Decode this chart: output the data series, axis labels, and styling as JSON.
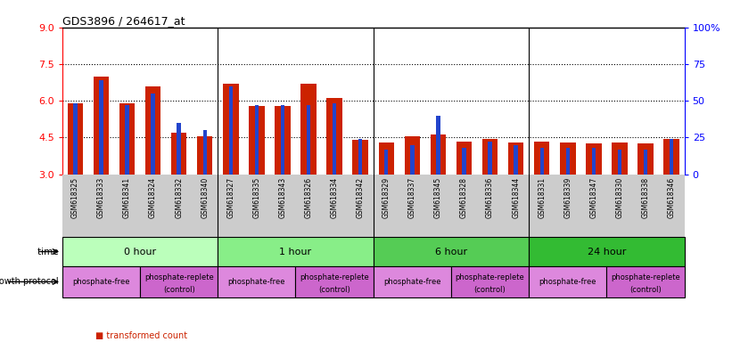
{
  "title": "GDS3896 / 264617_at",
  "samples": [
    "GSM618325",
    "GSM618333",
    "GSM618341",
    "GSM618324",
    "GSM618332",
    "GSM618340",
    "GSM618327",
    "GSM618335",
    "GSM618343",
    "GSM618326",
    "GSM618334",
    "GSM618342",
    "GSM618329",
    "GSM618337",
    "GSM618345",
    "GSM618328",
    "GSM618336",
    "GSM618344",
    "GSM618331",
    "GSM618339",
    "GSM618347",
    "GSM618330",
    "GSM618338",
    "GSM618346"
  ],
  "transformed_count": [
    5.9,
    7.0,
    5.9,
    6.6,
    4.7,
    4.55,
    6.7,
    5.8,
    5.8,
    6.7,
    6.1,
    4.4,
    4.28,
    4.56,
    4.62,
    4.32,
    4.45,
    4.28,
    4.32,
    4.28,
    4.26,
    4.28,
    4.26,
    4.45
  ],
  "percentile_rank": [
    48,
    64,
    47,
    55,
    35,
    30,
    60,
    47,
    47,
    47,
    48,
    24,
    17,
    20,
    40,
    18,
    22,
    20,
    18,
    18,
    18,
    17,
    17,
    24
  ],
  "time_groups": [
    {
      "label": "0 hour",
      "start": 0,
      "end": 6,
      "color": "#bbffbb"
    },
    {
      "label": "1 hour",
      "start": 6,
      "end": 12,
      "color": "#88ee88"
    },
    {
      "label": "6 hour",
      "start": 12,
      "end": 18,
      "color": "#55cc55"
    },
    {
      "label": "24 hour",
      "start": 18,
      "end": 24,
      "color": "#33bb33"
    }
  ],
  "protocol_groups": [
    {
      "label": "phosphate-free",
      "start": 0,
      "end": 3,
      "color": "#dd88dd"
    },
    {
      "label": "phosphate-replete\n(control)",
      "start": 3,
      "end": 6,
      "color": "#cc66cc"
    },
    {
      "label": "phosphate-free",
      "start": 6,
      "end": 9,
      "color": "#dd88dd"
    },
    {
      "label": "phosphate-replete\n(control)",
      "start": 9,
      "end": 12,
      "color": "#cc66cc"
    },
    {
      "label": "phosphate-free",
      "start": 12,
      "end": 15,
      "color": "#dd88dd"
    },
    {
      "label": "phosphate-replete\n(control)",
      "start": 15,
      "end": 18,
      "color": "#cc66cc"
    },
    {
      "label": "phosphate-free",
      "start": 18,
      "end": 21,
      "color": "#dd88dd"
    },
    {
      "label": "phosphate-replete\n(control)",
      "start": 21,
      "end": 24,
      "color": "#cc66cc"
    }
  ],
  "ylim_left": [
    3,
    9
  ],
  "ylim_right": [
    0,
    100
  ],
  "yticks_left": [
    3,
    4.5,
    6,
    7.5,
    9
  ],
  "yticks_right": [
    0,
    25,
    50,
    75,
    100
  ],
  "bar_color_red": "#cc2200",
  "bar_color_blue": "#2244cc",
  "label_bg_color": "#cccccc",
  "bar_width": 0.6,
  "blue_bar_width": 0.15
}
